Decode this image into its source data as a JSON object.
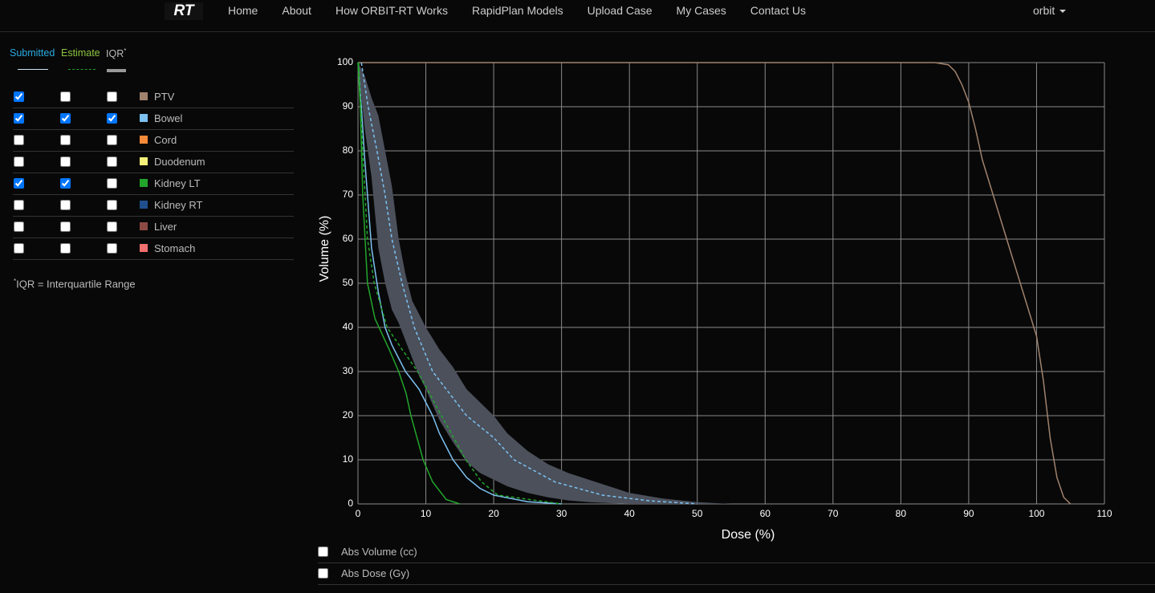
{
  "nav": {
    "logo": "RT",
    "links": [
      "Home",
      "About",
      "How ORBIT-RT Works",
      "RapidPlan Models",
      "Upload Case",
      "My Cases",
      "Contact Us"
    ],
    "user": "orbit"
  },
  "legend": {
    "submitted": "Submitted",
    "estimate": "Estimate",
    "iqr": "IQR",
    "iqr_mark": "*"
  },
  "footnote": {
    "mark": "*",
    "text": "IQR = Interquartile Range"
  },
  "options": [
    {
      "label": "Abs Volume (cc)",
      "checked": false
    },
    {
      "label": "Abs Dose (Gy)",
      "checked": false
    }
  ],
  "chart_data": {
    "type": "line",
    "x_label": "Dose (%)",
    "y_label": "Volume (%)",
    "xlim": [
      0,
      110
    ],
    "ylim": [
      0,
      100
    ],
    "xticks": [
      0,
      10,
      20,
      30,
      40,
      50,
      60,
      70,
      80,
      90,
      100,
      110
    ],
    "yticks": [
      0,
      10,
      20,
      30,
      40,
      50,
      60,
      70,
      80,
      90,
      100
    ],
    "grid": true,
    "structures": [
      {
        "name": "PTV",
        "color": "#a0826d",
        "submitted": true,
        "estimate": false,
        "iqr": false,
        "curves": {
          "submitted": {
            "x": [
              0,
              85,
              87,
              88,
              89,
              90,
              91,
              92,
              94,
              96,
              98,
              100,
              101,
              102,
              103,
              104,
              105
            ],
            "values": [
              100,
              100,
              99.5,
              98,
              95,
              91,
              85,
              78,
              68,
              58,
              48,
              38,
              28,
              15,
              6,
              1.5,
              0
            ]
          }
        }
      },
      {
        "name": "Bowel",
        "color": "#7cc1f0",
        "submitted": true,
        "estimate": true,
        "iqr": true,
        "curves": {
          "submitted": {
            "x": [
              0,
              0.5,
              1,
              1.5,
              2,
              3,
              4,
              5,
              6,
              7,
              8,
              9,
              10,
              11,
              12,
              13,
              14,
              16,
              18,
              20,
              25,
              30
            ],
            "values": [
              100,
              90,
              78,
              68,
              58,
              48,
              40,
              36,
              33,
              30,
              28,
              26,
              23,
              20,
              16,
              13,
              10,
              6,
              3.5,
              2,
              0.5,
              0
            ]
          },
          "estimate": {
            "x": [
              0.5,
              1.5,
              2.8,
              4,
              5,
              6.5,
              8.3,
              11,
              13.5,
              16,
              20,
              23,
              29,
              36,
              43,
              50
            ],
            "values": [
              100,
              90,
              80,
              70,
              60,
              50,
              40,
              30,
              25,
              20,
              15,
              10,
              5,
              2,
              0.7,
              0
            ]
          },
          "iqr": {
            "x": [
              0,
              1,
              2,
              3,
              4,
              5,
              6,
              7,
              8,
              9,
              10,
              12,
              14,
              16,
              18,
              20,
              22,
              25,
              28,
              31,
              34,
              37,
              40,
              45,
              50,
              55
            ],
            "lower": [
              100,
              85,
              74,
              58,
              50,
              44,
              41,
              37,
              33,
              29,
              26,
              19,
              14,
              9.5,
              7,
              5.5,
              4,
              2.5,
              1.5,
              0.8,
              0.4,
              0.2,
              0,
              0,
              0,
              0
            ],
            "upper": [
              100,
              97,
              92,
              88,
              80,
              72,
              60,
              52,
              46,
              43,
              40,
              35,
              31,
              26,
              23,
              20,
              16,
              12,
              9,
              7,
              5.5,
              4,
              2.5,
              1.2,
              0.4,
              0
            ]
          }
        }
      },
      {
        "name": "Cord",
        "color": "#f58a3a",
        "submitted": false,
        "estimate": false,
        "iqr": false
      },
      {
        "name": "Duodenum",
        "color": "#f4f07a",
        "submitted": false,
        "estimate": false,
        "iqr": false
      },
      {
        "name": "Kidney LT",
        "color": "#22a52b",
        "submitted": true,
        "estimate": true,
        "iqr": false,
        "curves": {
          "submitted": {
            "x": [
              0,
              0.35,
              0.7,
              1.4,
              2.5,
              4.6,
              6,
              7.1,
              7.8,
              9.6,
              11,
              13,
              15
            ],
            "values": [
              100,
              90,
              70,
              50,
              42,
              35,
              30,
              25,
              20,
              10,
              5,
              1,
              0
            ]
          },
          "estimate": {
            "x": [
              0.1,
              0.7,
              1.4,
              2.4,
              4.3,
              6.5,
              8.8,
              12.3,
              15.9,
              18.2,
              20.6,
              30
            ],
            "values": [
              100,
              80,
              60,
              50,
              40,
              35,
              30,
              20,
              10,
              5,
              2,
              0
            ]
          }
        }
      },
      {
        "name": "Kidney RT",
        "color": "#1f4f8f",
        "submitted": false,
        "estimate": false,
        "iqr": false
      },
      {
        "name": "Liver",
        "color": "#8b4a44",
        "submitted": false,
        "estimate": false,
        "iqr": false
      },
      {
        "name": "Stomach",
        "color": "#f07070",
        "submitted": false,
        "estimate": false,
        "iqr": false
      }
    ]
  }
}
